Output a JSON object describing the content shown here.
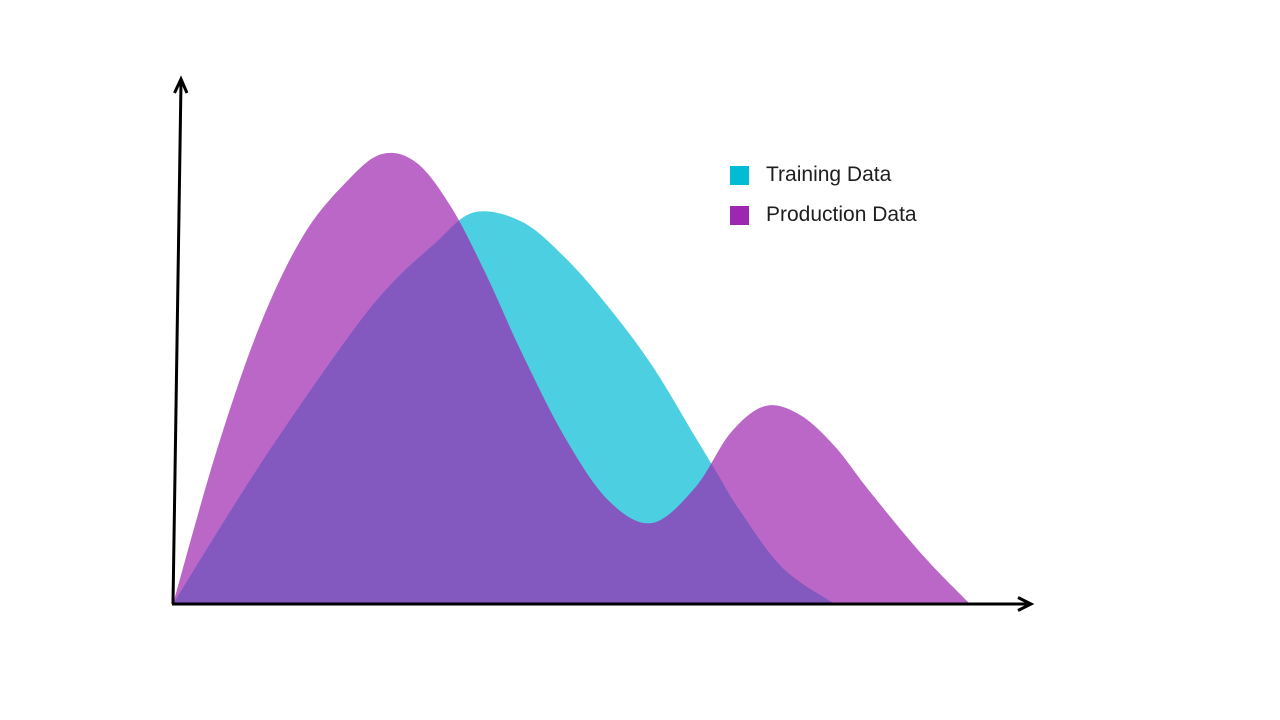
{
  "chart_data": {
    "type": "area",
    "title": "",
    "xlabel": "",
    "ylabel": "",
    "xlim": [
      0,
      100
    ],
    "ylim": [
      0,
      100
    ],
    "grid": false,
    "legend_position": "top-right",
    "series": [
      {
        "name": "Training Data",
        "color": "#00BCD4",
        "opacity": 0.7,
        "x": [
          0,
          10,
          20,
          25,
          30,
          34.5,
          40,
          45,
          50,
          55,
          60,
          62.5,
          65,
          70,
          76
        ],
        "y": [
          0,
          31,
          59,
          71,
          80,
          87,
          85,
          77,
          66,
          53,
          37,
          29,
          21,
          8,
          0
        ]
      },
      {
        "name": "Production Data",
        "color": "#9C27B0",
        "opacity": 0.7,
        "x": [
          0,
          5,
          10,
          15,
          20,
          24,
          28,
          32,
          36,
          40,
          45,
          50,
          55,
          60,
          64,
          68,
          72,
          76,
          80,
          86,
          91.5
        ],
        "y": [
          0,
          34,
          62,
          82,
          94,
          100,
          98,
          88,
          73,
          56,
          37,
          23,
          18,
          26,
          38,
          44,
          42,
          35,
          25,
          11,
          0
        ]
      }
    ]
  },
  "axes": {
    "color": "#000000",
    "arrow_icon": "arrow-head-icon"
  }
}
